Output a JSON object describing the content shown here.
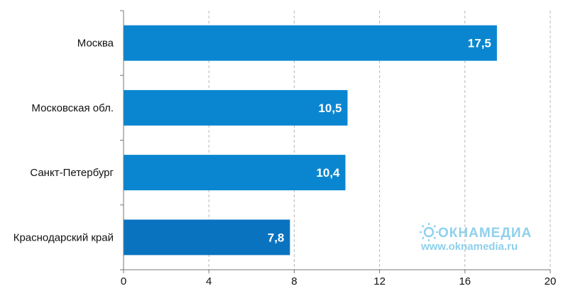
{
  "chart_data": {
    "type": "bar",
    "orientation": "horizontal",
    "title": "",
    "xlabel": "",
    "ylabel": "",
    "categories": [
      "Москва",
      "Московская обл.",
      "Санкт-Петербург",
      "Краснодарский край"
    ],
    "values": [
      17.5,
      10.5,
      10.4,
      7.8
    ],
    "value_labels": [
      "17,5",
      "10,5",
      "10,4",
      "7,8"
    ],
    "xlim": [
      0,
      20
    ],
    "x_ticks": [
      0,
      4,
      8,
      12,
      16,
      20
    ],
    "x_tick_labels": [
      "0",
      "4",
      "8",
      "12",
      "16",
      "20"
    ],
    "grid": "vertical dashed",
    "legend": "none",
    "colors": {
      "bar": "#0a86d0",
      "bar_highlight": "#0a73c0",
      "grid": "#b8b8b8",
      "axis": "#777777"
    }
  },
  "watermark": {
    "logo_text": "ОКНАМЕДИА",
    "url": "www.oknamedia.ru",
    "color": "#8fd0ec"
  }
}
